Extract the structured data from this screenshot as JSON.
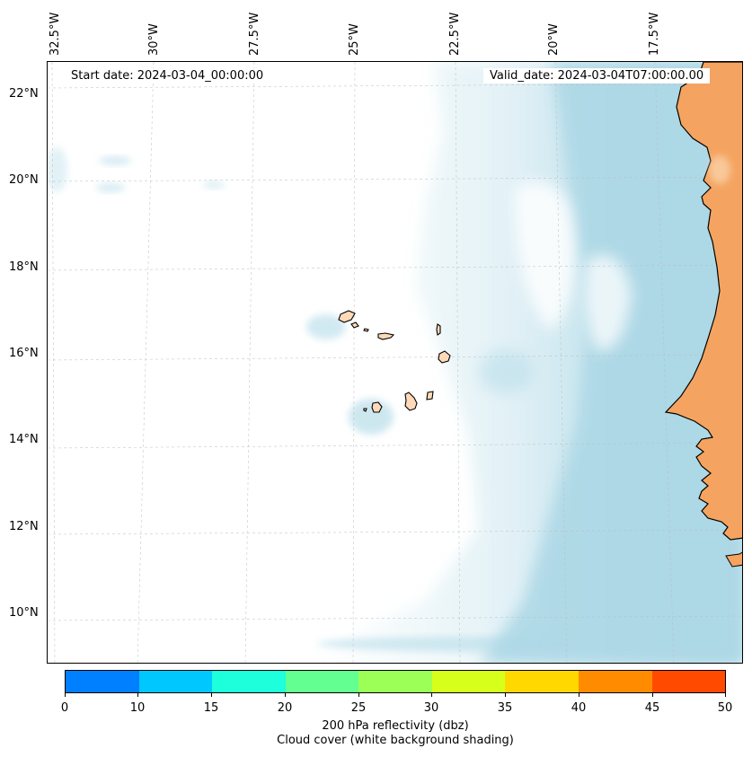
{
  "map": {
    "start_date": "Start date: 2024-03-04_00:00:00",
    "valid_date": "Valid_date: 2024-03-04T07:00:00.00",
    "lon_labels": [
      "32.5°W",
      "30°W",
      "27.5°W",
      "25°W",
      "22.5°W",
      "20°W",
      "17.5°W"
    ],
    "lat_labels": [
      "22°N",
      "20°N",
      "18°N",
      "16°N",
      "14°N",
      "12°N",
      "10°N"
    ],
    "land_color": "#f4a460",
    "cloud_color": "#add8e6",
    "coastline_color": "#000000",
    "gridlines": true
  },
  "colorbar": {
    "colors": [
      "#007fff",
      "#00c8ff",
      "#1effdc",
      "#63ff90",
      "#9bff57",
      "#d6ff1c",
      "#ffd800",
      "#ff8c00",
      "#ff4a00"
    ],
    "ticks": [
      "0",
      "10",
      "15",
      "20",
      "25",
      "30",
      "35",
      "40",
      "45",
      "50"
    ],
    "label_line1": "200 hPa reflectivity (dbz)",
    "label_line2": "Cloud cover (white background shading)"
  }
}
